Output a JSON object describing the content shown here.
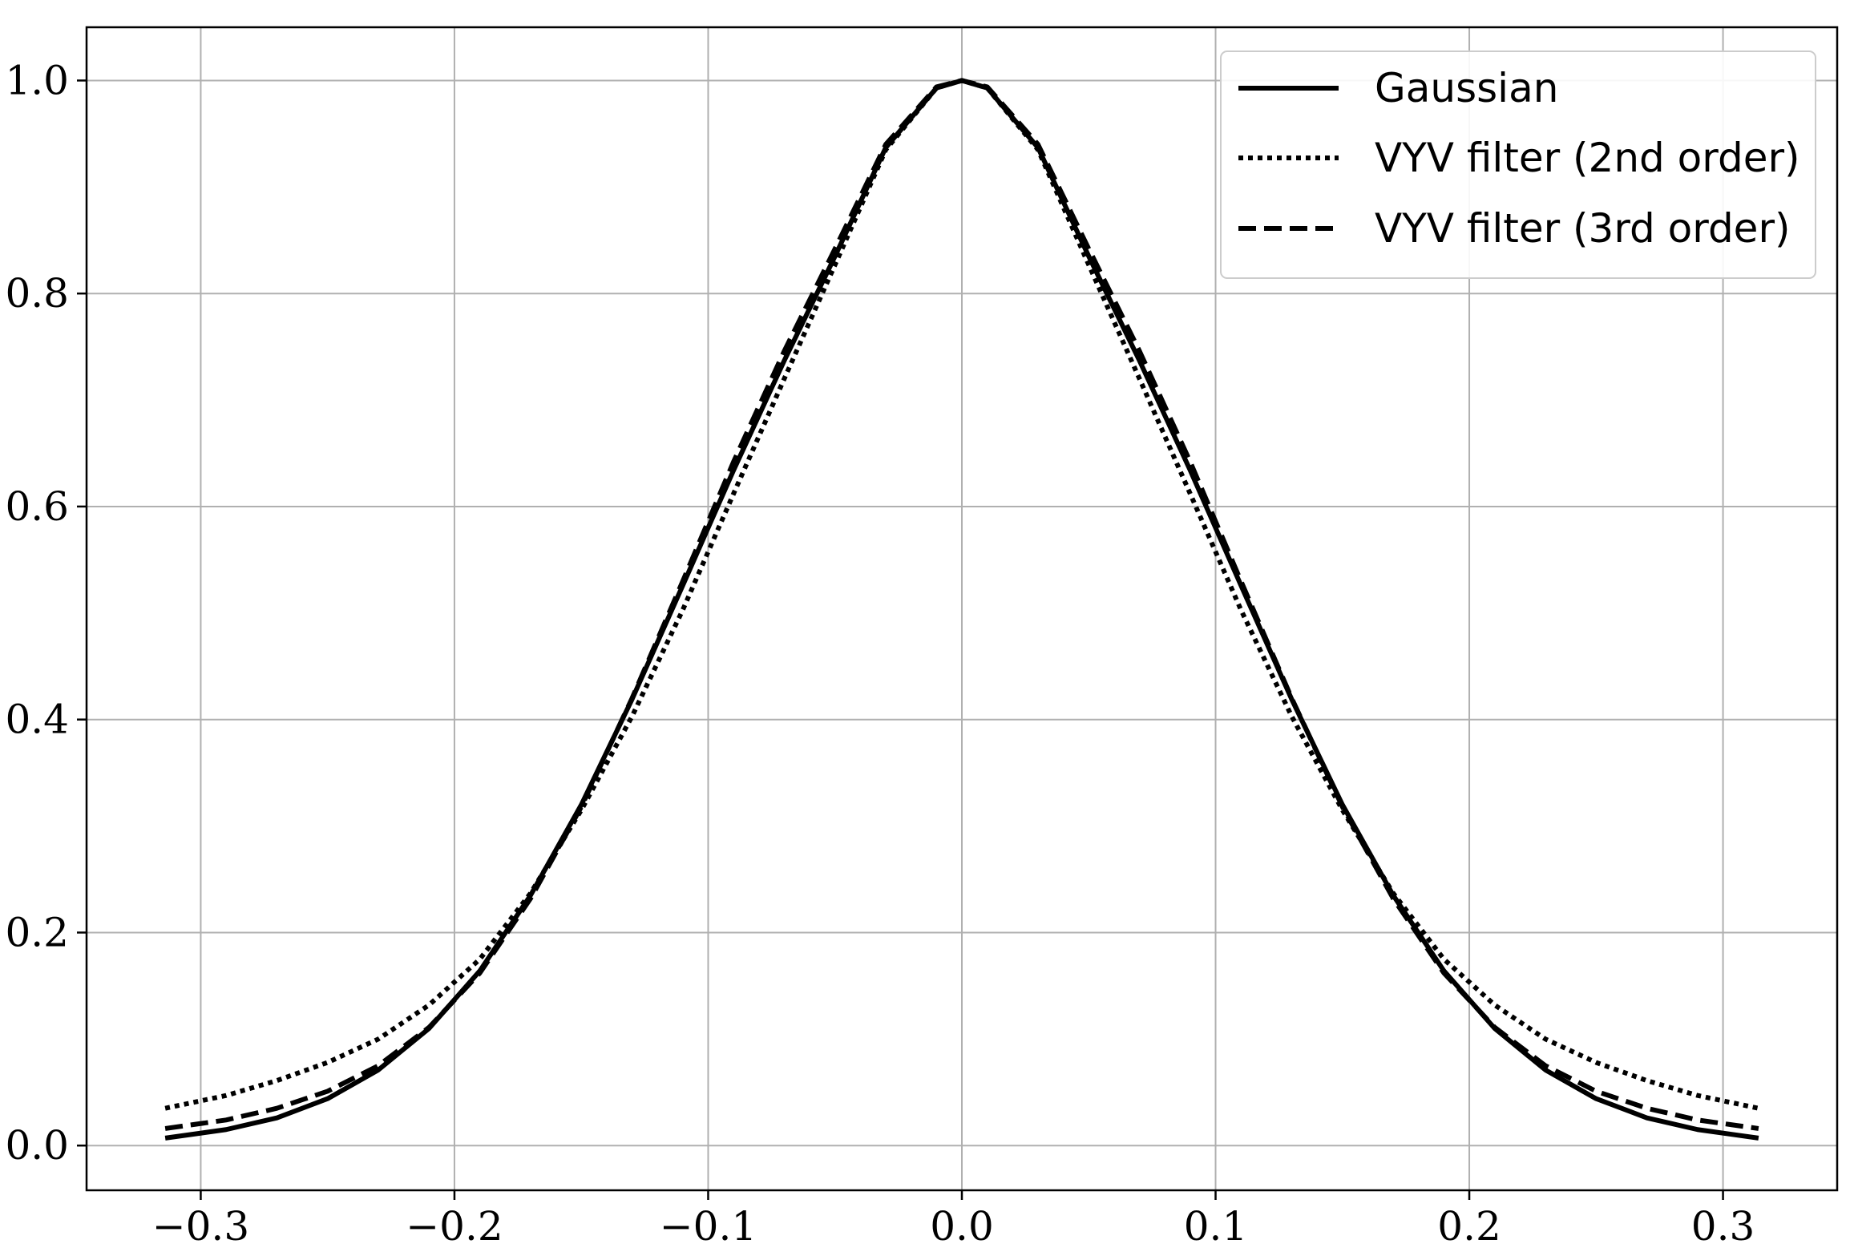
{
  "chart_data": {
    "type": "line",
    "title": "",
    "xlabel": "",
    "ylabel": "",
    "xlim": [
      -0.345,
      0.345
    ],
    "ylim": [
      -0.042,
      1.05
    ],
    "grid": true,
    "legend_position": "top-right",
    "xticks": [
      {
        "value": -0.3,
        "label": "−0.3"
      },
      {
        "value": -0.2,
        "label": "−0.2"
      },
      {
        "value": -0.1,
        "label": "−0.1"
      },
      {
        "value": 0.0,
        "label": "0.0"
      },
      {
        "value": 0.1,
        "label": "0.1"
      },
      {
        "value": 0.2,
        "label": "0.2"
      },
      {
        "value": 0.3,
        "label": "0.3"
      }
    ],
    "yticks": [
      {
        "value": 0.0,
        "label": "0.0"
      },
      {
        "value": 0.2,
        "label": "0.2"
      },
      {
        "value": 0.4,
        "label": "0.4"
      },
      {
        "value": 0.6,
        "label": "0.6"
      },
      {
        "value": 0.8,
        "label": "0.8"
      },
      {
        "value": 1.0,
        "label": "1.0"
      }
    ],
    "x": [
      -0.314,
      -0.29,
      -0.27,
      -0.25,
      -0.23,
      -0.21,
      -0.19,
      -0.17,
      -0.15,
      -0.13,
      -0.11,
      -0.09,
      -0.07,
      -0.05,
      -0.03,
      -0.01,
      0.0,
      0.01,
      0.03,
      0.05,
      0.07,
      0.09,
      0.11,
      0.13,
      0.15,
      0.17,
      0.19,
      0.21,
      0.23,
      0.25,
      0.27,
      0.29,
      0.314
    ],
    "series": [
      {
        "name": "Gaussian",
        "style": "solid",
        "values": [
          0.007,
          0.015,
          0.026,
          0.044,
          0.071,
          0.11,
          0.164,
          0.235,
          0.32,
          0.419,
          0.526,
          0.634,
          0.737,
          0.835,
          0.937,
          0.993,
          1.0,
          0.993,
          0.937,
          0.835,
          0.737,
          0.634,
          0.526,
          0.419,
          0.32,
          0.235,
          0.164,
          0.11,
          0.071,
          0.044,
          0.026,
          0.015,
          0.007
        ]
      },
      {
        "name": "VYV filter (2nd order)",
        "style": "dotted",
        "values": [
          0.035,
          0.047,
          0.061,
          0.078,
          0.1,
          0.132,
          0.175,
          0.237,
          0.315,
          0.403,
          0.503,
          0.612,
          0.72,
          0.827,
          0.935,
          0.993,
          1.0,
          0.993,
          0.935,
          0.827,
          0.72,
          0.612,
          0.503,
          0.403,
          0.315,
          0.237,
          0.175,
          0.132,
          0.1,
          0.078,
          0.061,
          0.047,
          0.035
        ]
      },
      {
        "name": "VYV filter (3rd order)",
        "style": "dashed",
        "values": [
          0.016,
          0.024,
          0.035,
          0.051,
          0.075,
          0.111,
          0.162,
          0.232,
          0.318,
          0.42,
          0.53,
          0.642,
          0.746,
          0.842,
          0.94,
          0.994,
          1.0,
          0.994,
          0.94,
          0.842,
          0.746,
          0.642,
          0.53,
          0.42,
          0.318,
          0.232,
          0.162,
          0.111,
          0.075,
          0.051,
          0.035,
          0.024,
          0.016
        ]
      }
    ]
  }
}
